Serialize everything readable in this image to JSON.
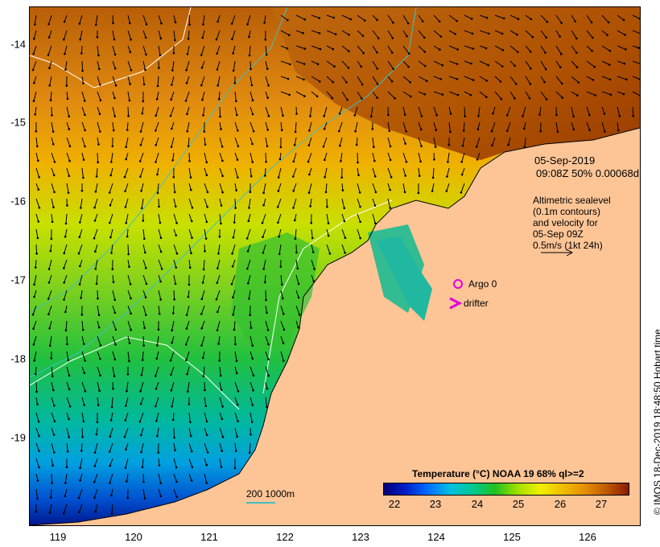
{
  "map": {
    "y_ticks": [
      "-14",
      "-15",
      "-16",
      "-17",
      "-18",
      "-19"
    ],
    "x_ticks": [
      "119",
      "120",
      "121",
      "122",
      "123",
      "124",
      "125",
      "126"
    ],
    "colors": {
      "land": "#fdc596",
      "contour_land": "#000000",
      "vectors": "#000000",
      "bathymetry": "#40c0c0",
      "sealevel_contour": "#ffffff",
      "argo": "#e000e0",
      "drifter": "#e000e0"
    }
  },
  "annotations": {
    "date": "05-Sep-2019",
    "pass_info": "09:08Z  50% 0.00068d",
    "altimetry_lines": [
      "Altimetric sealevel",
      "(0.1m contours)",
      "and velocity for",
      "05-Sep 09Z",
      "0.5m/s (1kt 24h)"
    ],
    "argo_label": "Argo 0",
    "drifter_label": "drifter"
  },
  "colorbar": {
    "title": "Temperature (°C) NOAA 19 68% ql>=2",
    "labels": [
      "22",
      "23",
      "24",
      "25",
      "26",
      "27"
    ],
    "range": [
      21.2,
      27.6
    ]
  },
  "scale": {
    "label": "200  1000m"
  },
  "credit": "© IMOS 18-Dec-2019 18:48:50 Hobart time"
}
